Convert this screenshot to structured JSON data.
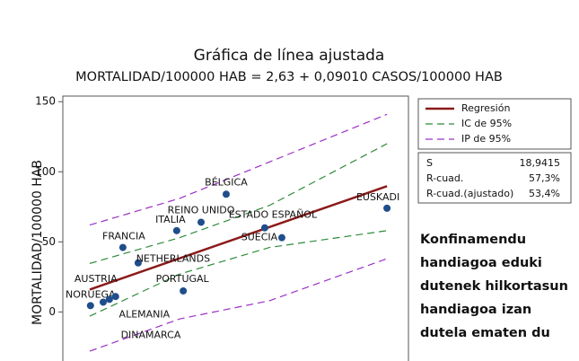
{
  "chart_data": {
    "type": "scatter",
    "title": "Gráfica de línea ajustada",
    "subtitle": "MORTALIDAD/100000 HAB = 2,63 + 0,09010 CASOS/100000 HAB",
    "ylabel": "MORTALIDAD/100000 HAB",
    "xlim": [
      75,
      1025
    ],
    "ylim": [
      -35,
      154
    ],
    "yticks": [
      0,
      50,
      100,
      150
    ],
    "points": {
      "color": "#1f4e8c",
      "labels": [
        "NORUEGA",
        "DINAMARCA",
        "ALEMANIA",
        "AUSTRIA",
        "FRANCIA",
        "NETHERLANDS",
        "PORTUGAL",
        "ITALIA",
        "REINO UNIDO",
        "BÉLGICA",
        "ESTADO ESPAÑOL",
        "SUECIA",
        "EUSKADI"
      ],
      "x": [
        151,
        186,
        203,
        220,
        240,
        282,
        406,
        388,
        455,
        524,
        630,
        677,
        966
      ],
      "values": [
        4.5,
        7,
        9,
        11,
        46,
        35,
        15,
        58,
        64,
        84,
        60,
        53,
        74
      ]
    },
    "lines": [
      {
        "name": "Regresión",
        "color": "#8b1a1a",
        "dash": "solid",
        "x": [
          149,
          966
        ],
        "values": [
          16,
          89.7
        ]
      },
      {
        "name": "IC de 95%",
        "color": "#2e8b3a",
        "dash": "dashed",
        "x": [
          149,
          396,
          643,
          966
        ],
        "values": [
          34.6,
          53,
          76,
          120
        ]
      },
      {
        "name": "IC de 95%",
        "color": "#2e8b3a",
        "dash": "dashed",
        "x": [
          149,
          396,
          643,
          966
        ],
        "values": [
          -3,
          27,
          46,
          58
        ]
      },
      {
        "name": "IP de 95%",
        "color": "#9b30c8",
        "dash": "dashed",
        "x": [
          149,
          396,
          643,
          966
        ],
        "values": [
          62,
          81,
          107,
          141
        ]
      },
      {
        "name": "IP de 95%",
        "color": "#9b30c8",
        "dash": "dashed",
        "x": [
          149,
          396,
          643,
          966
        ],
        "values": [
          -28,
          -5,
          8,
          38
        ]
      }
    ],
    "stats": [
      [
        "S",
        "18,9415"
      ],
      [
        "R-cuad.",
        "57,3%"
      ],
      [
        "R-cuad.(ajustado)",
        "53,4%"
      ]
    ],
    "annotation": [
      "Konfinamendu",
      "handiagoa eduki",
      "dutenek hilkortasun",
      "handiagoa izan",
      "dutela ematen du"
    ]
  }
}
